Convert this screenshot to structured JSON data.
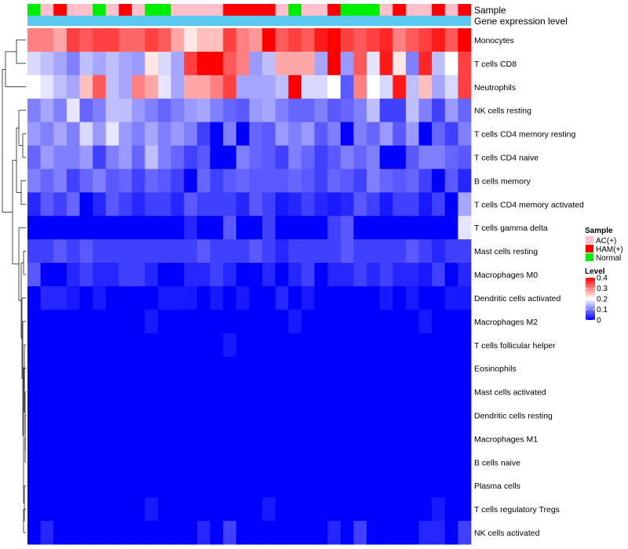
{
  "chart_data": {
    "type": "heatmap",
    "title": "",
    "annotation_labels": {
      "sample": "Sample",
      "expression": "Gene expression level"
    },
    "sample_groups": [
      "Normal",
      "AC(+)",
      "HAM(+)",
      "AC(+)",
      "AC(+)",
      "Normal",
      "AC(+)",
      "HAM(+)",
      "AC(+)",
      "Normal",
      "Normal",
      "AC(+)",
      "AC(+)",
      "AC(+)",
      "AC(+)",
      "HAM(+)",
      "HAM(+)",
      "HAM(+)",
      "HAM(+)",
      "AC(+)",
      "Normal",
      "AC(+)",
      "AC(+)",
      "HAM(+)",
      "Normal",
      "Normal",
      "Normal",
      "AC(+)",
      "HAM(+)",
      "AC(+)",
      "AC(+)",
      "HAM(+)",
      "AC(+)",
      "HAM(+)"
    ],
    "rows": [
      "Monocytes",
      "T cells CD8",
      "Neutrophils",
      "NK cells resting",
      "T cells CD4 memory resting",
      "T cells CD4 naive",
      "B cells memory",
      "T cells CD4 memory activated",
      "T cells gamma delta",
      "Mast cells resting",
      "Macrophages M0",
      "Dendritic cells activated",
      "Macrophages M2",
      "T cells follicular helper",
      "Eosinophils",
      "Mast cells activated",
      "Dendritic cells resting",
      "Macrophages M1",
      "B cells naive",
      "Plasma cells",
      "T cells regulatory  Tregs",
      "NK cells activated"
    ],
    "values": [
      [
        0.3,
        0.3,
        0.27,
        0.35,
        0.33,
        0.35,
        0.35,
        0.32,
        0.32,
        0.35,
        0.33,
        0.27,
        0.22,
        0.25,
        0.25,
        0.35,
        0.3,
        0.28,
        0.4,
        0.33,
        0.35,
        0.33,
        0.38,
        0.4,
        0.35,
        0.33,
        0.35,
        0.37,
        0.3,
        0.33,
        0.35,
        0.38,
        0.33,
        0.4
      ],
      [
        0.17,
        0.15,
        0.13,
        0.1,
        0.15,
        0.13,
        0.15,
        0.13,
        0.12,
        0.22,
        0.17,
        0.13,
        0.35,
        0.4,
        0.4,
        0.33,
        0.3,
        0.12,
        0.15,
        0.27,
        0.27,
        0.27,
        0.13,
        0.4,
        0.12,
        0.33,
        0.18,
        0.38,
        0.22,
        0.1,
        0.37,
        0.15,
        0.2,
        0.35
      ],
      [
        0.2,
        0.18,
        0.15,
        0.13,
        0.25,
        0.33,
        0.15,
        0.13,
        0.3,
        0.27,
        0.18,
        0.13,
        0.27,
        0.27,
        0.3,
        0.35,
        0.13,
        0.13,
        0.13,
        0.15,
        0.4,
        0.17,
        0.17,
        0.2,
        0.07,
        0.3,
        0.2,
        0.17,
        0.38,
        0.15,
        0.25,
        0.13,
        0.17,
        0.35
      ],
      [
        0.1,
        0.13,
        0.1,
        0.18,
        0.08,
        0.1,
        0.15,
        0.15,
        0.12,
        0.1,
        0.08,
        0.1,
        0.12,
        0.13,
        0.1,
        0.08,
        0.07,
        0.12,
        0.13,
        0.1,
        0.08,
        0.08,
        0.1,
        0.07,
        0.08,
        0.1,
        0.15,
        0.05,
        0.05,
        0.15,
        0.1,
        0.05,
        0.12,
        0.08
      ],
      [
        0.12,
        0.1,
        0.13,
        0.1,
        0.17,
        0.12,
        0.18,
        0.12,
        0.1,
        0.13,
        0.1,
        0.12,
        0.1,
        0.05,
        0.0,
        0.1,
        0.0,
        0.08,
        0.07,
        0.12,
        0.1,
        0.12,
        0.07,
        0.1,
        0.0,
        0.1,
        0.08,
        0.12,
        0.07,
        0.12,
        0.0,
        0.08,
        0.05,
        0.1
      ],
      [
        0.08,
        0.12,
        0.1,
        0.1,
        0.12,
        0.05,
        0.1,
        0.12,
        0.08,
        0.15,
        0.1,
        0.08,
        0.05,
        0.07,
        0.0,
        0.0,
        0.1,
        0.08,
        0.07,
        0.05,
        0.1,
        0.08,
        0.05,
        0.07,
        0.1,
        0.08,
        0.1,
        0.0,
        0.0,
        0.07,
        0.1,
        0.1,
        0.08,
        0.07
      ],
      [
        0.1,
        0.08,
        0.1,
        0.05,
        0.08,
        0.1,
        0.07,
        0.08,
        0.05,
        0.08,
        0.07,
        0.05,
        0.0,
        0.08,
        0.05,
        0.07,
        0.08,
        0.07,
        0.07,
        0.07,
        0.08,
        0.07,
        0.05,
        0.08,
        0.07,
        0.05,
        0.1,
        0.08,
        0.07,
        0.08,
        0.05,
        0.0,
        0.07,
        0.03
      ],
      [
        0.03,
        0.07,
        0.05,
        0.08,
        0.0,
        0.03,
        0.07,
        0.05,
        0.03,
        0.05,
        0.05,
        0.03,
        0.07,
        0.05,
        0.05,
        0.05,
        0.03,
        0.07,
        0.05,
        0.02,
        0.03,
        0.05,
        0.03,
        0.02,
        0.03,
        0.07,
        0.05,
        0.02,
        0.05,
        0.05,
        0.02,
        0.05,
        0.0,
        0.13
      ],
      [
        0.0,
        0.0,
        0.0,
        0.0,
        0.0,
        0.0,
        0.0,
        0.0,
        0.0,
        0.0,
        0.0,
        0.0,
        0.03,
        0.0,
        0.0,
        0.07,
        0.0,
        0.0,
        0.05,
        0.0,
        0.0,
        0.0,
        0.0,
        0.05,
        0.07,
        0.0,
        0.0,
        0.0,
        0.0,
        0.0,
        0.0,
        0.0,
        0.0,
        0.18
      ],
      [
        0.05,
        0.05,
        0.07,
        0.05,
        0.07,
        0.05,
        0.05,
        0.05,
        0.05,
        0.05,
        0.05,
        0.05,
        0.05,
        0.07,
        0.05,
        0.05,
        0.05,
        0.07,
        0.05,
        0.03,
        0.05,
        0.05,
        0.05,
        0.05,
        0.07,
        0.05,
        0.05,
        0.05,
        0.05,
        0.07,
        0.05,
        0.03,
        0.05,
        0.05
      ],
      [
        0.07,
        0.0,
        0.0,
        0.03,
        0.05,
        0.03,
        0.03,
        0.05,
        0.05,
        0.03,
        0.0,
        0.0,
        0.03,
        0.03,
        0.05,
        0.03,
        0.0,
        0.0,
        0.03,
        0.0,
        0.03,
        0.05,
        0.0,
        0.03,
        0.03,
        0.05,
        0.03,
        0.05,
        0.03,
        0.03,
        0.02,
        0.05,
        0.0,
        0.03
      ],
      [
        0.0,
        0.03,
        0.03,
        0.02,
        0.0,
        0.02,
        0.0,
        0.0,
        0.0,
        0.0,
        0.02,
        0.02,
        0.02,
        0.0,
        0.02,
        0.0,
        0.02,
        0.0,
        0.0,
        0.03,
        0.0,
        0.02,
        0.0,
        0.0,
        0.0,
        0.0,
        0.0,
        0.02,
        0.0,
        0.02,
        0.0,
        0.0,
        0.02,
        0.02
      ],
      [
        0.0,
        0.0,
        0.0,
        0.0,
        0.0,
        0.0,
        0.0,
        0.0,
        0.0,
        0.02,
        0.0,
        0.0,
        0.0,
        0.0,
        0.0,
        0.0,
        0.0,
        0.0,
        0.0,
        0.0,
        0.02,
        0.0,
        0.0,
        0.0,
        0.0,
        0.0,
        0.0,
        0.0,
        0.0,
        0.0,
        0.02,
        0.0,
        0.0,
        0.0
      ],
      [
        0.0,
        0.0,
        0.0,
        0.0,
        0.0,
        0.0,
        0.0,
        0.0,
        0.0,
        0.0,
        0.0,
        0.0,
        0.0,
        0.0,
        0.0,
        0.02,
        0.0,
        0.0,
        0.0,
        0.0,
        0.0,
        0.0,
        0.0,
        0.0,
        0.0,
        0.0,
        0.0,
        0.0,
        0.0,
        0.0,
        0.0,
        0.0,
        0.0,
        0.0
      ],
      [
        0.0,
        0.0,
        0.0,
        0.0,
        0.0,
        0.0,
        0.0,
        0.0,
        0.0,
        0.0,
        0.0,
        0.0,
        0.0,
        0.0,
        0.0,
        0.0,
        0.0,
        0.0,
        0.0,
        0.0,
        0.0,
        0.0,
        0.0,
        0.0,
        0.0,
        0.0,
        0.0,
        0.0,
        0.0,
        0.0,
        0.0,
        0.0,
        0.0,
        0.0
      ],
      [
        0.0,
        0.0,
        0.0,
        0.0,
        0.0,
        0.0,
        0.0,
        0.0,
        0.0,
        0.0,
        0.0,
        0.0,
        0.0,
        0.0,
        0.0,
        0.0,
        0.0,
        0.0,
        0.0,
        0.0,
        0.0,
        0.0,
        0.0,
        0.0,
        0.0,
        0.0,
        0.0,
        0.0,
        0.0,
        0.0,
        0.0,
        0.0,
        0.0,
        0.0
      ],
      [
        0.0,
        0.0,
        0.0,
        0.0,
        0.0,
        0.0,
        0.0,
        0.0,
        0.0,
        0.0,
        0.0,
        0.0,
        0.0,
        0.0,
        0.0,
        0.0,
        0.0,
        0.0,
        0.0,
        0.0,
        0.0,
        0.0,
        0.0,
        0.0,
        0.0,
        0.0,
        0.0,
        0.0,
        0.0,
        0.0,
        0.0,
        0.0,
        0.0,
        0.0
      ],
      [
        0.0,
        0.0,
        0.0,
        0.0,
        0.0,
        0.0,
        0.0,
        0.0,
        0.0,
        0.0,
        0.0,
        0.0,
        0.0,
        0.0,
        0.0,
        0.0,
        0.0,
        0.0,
        0.0,
        0.0,
        0.0,
        0.0,
        0.0,
        0.0,
        0.0,
        0.0,
        0.0,
        0.0,
        0.0,
        0.0,
        0.0,
        0.0,
        0.0,
        0.0
      ],
      [
        0.0,
        0.0,
        0.0,
        0.0,
        0.0,
        0.0,
        0.0,
        0.0,
        0.0,
        0.0,
        0.0,
        0.0,
        0.0,
        0.0,
        0.0,
        0.0,
        0.0,
        0.0,
        0.0,
        0.0,
        0.0,
        0.0,
        0.0,
        0.0,
        0.0,
        0.0,
        0.0,
        0.0,
        0.0,
        0.0,
        0.0,
        0.0,
        0.0,
        0.0
      ],
      [
        0.0,
        0.0,
        0.0,
        0.0,
        0.0,
        0.0,
        0.0,
        0.0,
        0.0,
        0.0,
        0.0,
        0.0,
        0.0,
        0.0,
        0.0,
        0.0,
        0.0,
        0.0,
        0.0,
        0.0,
        0.0,
        0.0,
        0.0,
        0.0,
        0.0,
        0.0,
        0.0,
        0.0,
        0.0,
        0.0,
        0.0,
        0.0,
        0.0,
        0.0
      ],
      [
        0.0,
        0.0,
        0.0,
        0.0,
        0.0,
        0.0,
        0.0,
        0.0,
        0.0,
        0.02,
        0.0,
        0.0,
        0.0,
        0.0,
        0.0,
        0.0,
        0.0,
        0.0,
        0.02,
        0.0,
        0.0,
        0.0,
        0.0,
        0.0,
        0.0,
        0.0,
        0.0,
        0.0,
        0.0,
        0.0,
        0.0,
        0.02,
        0.0,
        0.0
      ],
      [
        0.0,
        0.03,
        0.0,
        0.0,
        0.0,
        0.0,
        0.0,
        0.0,
        0.0,
        0.0,
        0.0,
        0.0,
        0.0,
        0.03,
        0.0,
        0.05,
        0.0,
        0.0,
        0.0,
        0.0,
        0.0,
        0.0,
        0.0,
        0.03,
        0.0,
        0.05,
        0.0,
        0.0,
        0.0,
        0.0,
        0.03,
        0.03,
        0.0,
        0.05
      ]
    ],
    "legend_sample": {
      "title": "Sample",
      "entries": [
        {
          "label": "AC(+)",
          "color": "#FFC0CB"
        },
        {
          "label": "HAM(+)",
          "color": "#FF0000"
        },
        {
          "label": "Normal",
          "color": "#00EE00"
        }
      ]
    },
    "legend_level": {
      "title": "Level",
      "ticks": [
        "0.4",
        "0.3",
        "0.2",
        "0.1",
        "0"
      ],
      "range": [
        0,
        0.4
      ]
    },
    "expression_bar_color": "#5BC8F0",
    "color_scale": {
      "low": "#0000FF",
      "mid": "#FFFFFF",
      "high": "#FF0000"
    }
  }
}
